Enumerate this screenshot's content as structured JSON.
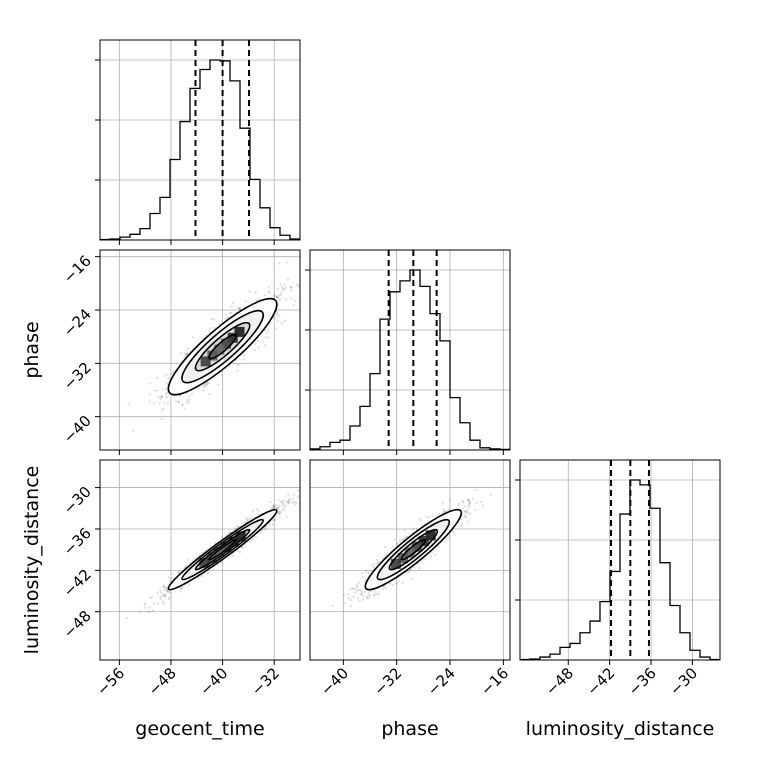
{
  "chart_data": {
    "type": "corner",
    "parameters": [
      "geocent_time",
      "phase",
      "luminosity_distance"
    ],
    "axis_labels": {
      "x": [
        "geocent_time",
        "phase",
        "luminosity_distance"
      ],
      "y": [
        "phase",
        "luminosity_distance"
      ]
    },
    "ranges": {
      "geocent_time": [
        -59,
        -28
      ],
      "phase": [
        -45,
        -15
      ],
      "luminosity_distance": [
        -55,
        -26
      ]
    },
    "ticks": {
      "geocent_time": [
        -56,
        -48,
        -40,
        -32
      ],
      "phase": [
        -40,
        -32,
        -24,
        -16
      ],
      "luminosity_distance": [
        -48,
        -42,
        -36,
        -30
      ]
    },
    "tick_labels": {
      "geocent_time": [
        "−56",
        "−48",
        "−40",
        "−32"
      ],
      "phase": [
        "−40",
        "−32",
        "−24",
        "−16"
      ],
      "luminosity_distance": [
        "−48",
        "−42",
        "−36",
        "−30"
      ]
    },
    "quantiles": {
      "geocent_time": [
        -44.2,
        -40.0,
        -35.9
      ],
      "phase": [
        -33.2,
        -29.5,
        -26.0
      ],
      "luminosity_distance": [
        -41.8,
        -39.0,
        -36.3
      ]
    },
    "histograms": {
      "geocent_time": {
        "bins": [
          -59,
          -57.45,
          -55.9,
          -54.35,
          -52.8,
          -51.25,
          -49.7,
          -48.15,
          -46.6,
          -45.05,
          -43.5,
          -41.95,
          -40.4,
          -38.85,
          -37.3,
          -35.75,
          -34.2,
          -32.65,
          -31.1,
          -29.55,
          -28
        ],
        "counts": [
          0.5,
          1,
          3,
          6,
          12,
          28,
          45,
          85,
          125,
          160,
          180,
          190,
          189,
          168,
          118,
          64,
          34,
          13,
          5,
          1
        ]
      },
      "phase": {
        "bins": [
          -45,
          -43.5,
          -42,
          -40.5,
          -39,
          -37.5,
          -36,
          -34.5,
          -33,
          -31.5,
          -30,
          -28.5,
          -27,
          -25.5,
          -24,
          -22.5,
          -21,
          -19.5,
          -18,
          -16.5,
          -15
        ],
        "counts": [
          1,
          3,
          7,
          9,
          22,
          40,
          70,
          120,
          145,
          155,
          165,
          150,
          125,
          100,
          48,
          25,
          9,
          2,
          1,
          0.5
        ]
      },
      "luminosity_distance": {
        "bins": [
          -55,
          -53.55,
          -52.1,
          -50.65,
          -49.2,
          -47.75,
          -46.3,
          -44.85,
          -43.4,
          -41.95,
          -40.5,
          -39.05,
          -37.6,
          -36.15,
          -34.7,
          -33.25,
          -31.8,
          -30.35,
          -28.9,
          -27.45,
          -26
        ],
        "counts": [
          0.5,
          1,
          3,
          6,
          13,
          17,
          28,
          40,
          60,
          91,
          150,
          185,
          180,
          156,
          100,
          56,
          28,
          10,
          3,
          0.5
        ]
      }
    },
    "pairs": [
      {
        "x": "geocent_time",
        "y": "phase",
        "mean": [
          -40.0,
          -29.5
        ],
        "sd": [
          4.2,
          3.6
        ],
        "corr": 0.88,
        "n_points": 1400,
        "seed": 11
      },
      {
        "x": "geocent_time",
        "y": "luminosity_distance",
        "mean": [
          -40.0,
          -39.0
        ],
        "sd": [
          4.2,
          2.9
        ],
        "corr": 0.97,
        "n_points": 1400,
        "seed": 23
      },
      {
        "x": "phase",
        "y": "luminosity_distance",
        "mean": [
          -29.5,
          -39.0
        ],
        "sd": [
          3.6,
          2.9
        ],
        "corr": 0.92,
        "n_points": 1400,
        "seed": 37
      }
    ],
    "contour_levels_sigma": [
      0.5,
      1.0,
      1.5,
      2.0
    ],
    "grid": true,
    "title": ""
  }
}
